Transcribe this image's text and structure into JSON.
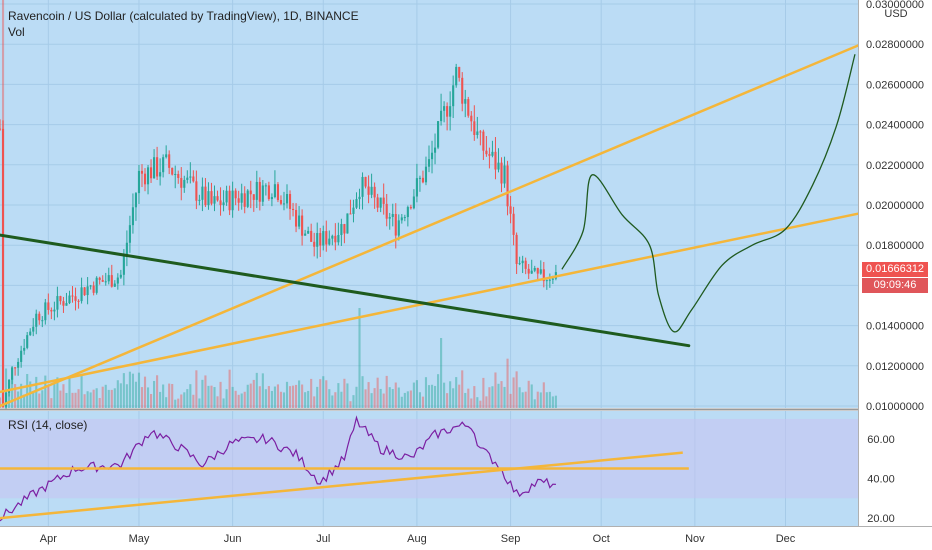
{
  "header": {
    "title": "Ravencoin / US Dollar (calculated by TradingView), 1D, BINANCE",
    "vol_label": "Vol",
    "rsi_label": "RSI (14, close)"
  },
  "price_axis": {
    "unit": "USD",
    "ticks": [
      "0.01000000",
      "0.01200000",
      "0.01400000",
      "0.01600000",
      "0.01800000",
      "0.02000000",
      "0.02200000",
      "0.02400000",
      "0.02600000",
      "0.02800000",
      "0.03000000"
    ]
  },
  "rsi_axis": {
    "ticks": [
      "20.00",
      "40.00",
      "60.00"
    ]
  },
  "time_axis": {
    "labels": [
      "Apr",
      "May",
      "Jun",
      "Jul",
      "Aug",
      "Sep",
      "Oct",
      "Nov",
      "Dec"
    ]
  },
  "last_price": {
    "value": "0.01666312",
    "countdown": "09:09:46"
  },
  "colors": {
    "background": "#bbdcf5",
    "up": "#26a69a",
    "down": "#ef5350",
    "trendline_orange": "#f4b63a",
    "trendline_green": "#1e5b1e",
    "projection": "#1f5a1f",
    "rsi_line": "#7b1fa2",
    "rsi_band": "#c9c2f0",
    "price_badge": "#ef5350",
    "countdown_badge": "#e0565a"
  },
  "chart_data": [
    {
      "type": "candlestick",
      "title": "Ravencoin / US Dollar (calculated by TradingView), 1D, BINANCE",
      "x_range": [
        "2020-03-16",
        "2020-12-25"
      ],
      "ylim": [
        0.0099,
        0.0302
      ],
      "y_unit": "USD",
      "grid": true,
      "anchors": [
        {
          "date": "2020-03-16",
          "close": 0.0238
        },
        {
          "date": "2020-03-17",
          "close": 0.01
        },
        {
          "date": "2020-03-20",
          "close": 0.0118
        },
        {
          "date": "2020-03-28",
          "close": 0.0145
        },
        {
          "date": "2020-04-15",
          "close": 0.016
        },
        {
          "date": "2020-04-25",
          "close": 0.0165
        },
        {
          "date": "2020-05-01",
          "close": 0.0215
        },
        {
          "date": "2020-05-10",
          "close": 0.022
        },
        {
          "date": "2020-05-25",
          "close": 0.02
        },
        {
          "date": "2020-06-15",
          "close": 0.021
        },
        {
          "date": "2020-06-28",
          "close": 0.018
        },
        {
          "date": "2020-07-08",
          "close": 0.019
        },
        {
          "date": "2020-07-13",
          "close": 0.021
        },
        {
          "date": "2020-07-25",
          "close": 0.019
        },
        {
          "date": "2020-08-05",
          "close": 0.022
        },
        {
          "date": "2020-08-14",
          "close": 0.0265
        },
        {
          "date": "2020-08-22",
          "close": 0.023
        },
        {
          "date": "2020-08-30",
          "close": 0.0215
        },
        {
          "date": "2020-09-03",
          "close": 0.017
        },
        {
          "date": "2020-09-10",
          "close": 0.0163
        },
        {
          "date": "2020-09-16",
          "close": 0.01666
        }
      ],
      "volume": {
        "relative_peaks": [
          {
            "date": "2020-07-13",
            "level": "max"
          },
          {
            "date": "2020-08-09",
            "level": "high"
          }
        ]
      }
    },
    {
      "type": "line",
      "name": "RSI (14, close)",
      "ylim": [
        16,
        74
      ],
      "bands": [
        30,
        70
      ],
      "points": [
        {
          "date": "2020-03-16",
          "y": 20
        },
        {
          "date": "2020-03-28",
          "y": 33
        },
        {
          "date": "2020-04-10",
          "y": 45
        },
        {
          "date": "2020-04-25",
          "y": 47
        },
        {
          "date": "2020-05-05",
          "y": 64
        },
        {
          "date": "2020-05-15",
          "y": 55
        },
        {
          "date": "2020-05-22",
          "y": 47
        },
        {
          "date": "2020-06-01",
          "y": 58
        },
        {
          "date": "2020-06-12",
          "y": 60
        },
        {
          "date": "2020-06-22",
          "y": 52
        },
        {
          "date": "2020-06-30",
          "y": 38
        },
        {
          "date": "2020-07-08",
          "y": 50
        },
        {
          "date": "2020-07-12",
          "y": 69
        },
        {
          "date": "2020-07-20",
          "y": 55
        },
        {
          "date": "2020-07-30",
          "y": 50
        },
        {
          "date": "2020-08-07",
          "y": 62
        },
        {
          "date": "2020-08-14",
          "y": 66
        },
        {
          "date": "2020-08-19",
          "y": 67
        },
        {
          "date": "2020-08-22",
          "y": 55
        },
        {
          "date": "2020-08-28",
          "y": 47
        },
        {
          "date": "2020-09-03",
          "y": 32
        },
        {
          "date": "2020-09-10",
          "y": 38
        },
        {
          "date": "2020-09-16",
          "y": 37
        }
      ]
    }
  ],
  "drawings": {
    "price_trendlines": [
      {
        "name": "orange-trendline-upper",
        "color": "orange",
        "p1": {
          "date": "2020-03-16",
          "price": 0.01
        },
        "p2": {
          "date": "2020-12-26",
          "price": 0.028
        }
      },
      {
        "name": "orange-trendline-lower",
        "color": "orange",
        "p1": {
          "date": "2020-03-16",
          "price": 0.0107
        },
        "p2": {
          "date": "2020-12-26",
          "price": 0.0196
        }
      },
      {
        "name": "green-trendline",
        "color": "green",
        "p1": {
          "date": "2020-03-16",
          "price": 0.0185
        },
        "p2": {
          "date": "2020-10-30",
          "price": 0.013
        }
      }
    ],
    "rsi_lines": [
      {
        "name": "rsi-horizontal-line",
        "p1": {
          "date": "2020-03-16",
          "y": 45
        },
        "p2": {
          "date": "2020-10-30",
          "y": 45
        }
      },
      {
        "name": "rsi-rising-line",
        "p1": {
          "date": "2020-03-16",
          "y": 20
        },
        "p2": {
          "date": "2020-10-28",
          "y": 53
        }
      }
    ],
    "projection_path": [
      {
        "date": "2020-09-18",
        "price": 0.0168
      },
      {
        "date": "2020-09-25",
        "price": 0.0187
      },
      {
        "date": "2020-09-28",
        "price": 0.0215
      },
      {
        "date": "2020-10-08",
        "price": 0.0195
      },
      {
        "date": "2020-10-17",
        "price": 0.018
      },
      {
        "date": "2020-10-20",
        "price": 0.0155
      },
      {
        "date": "2020-10-25",
        "price": 0.0137
      },
      {
        "date": "2020-10-31",
        "price": 0.0148
      },
      {
        "date": "2020-11-10",
        "price": 0.017
      },
      {
        "date": "2020-11-20",
        "price": 0.018
      },
      {
        "date": "2020-12-01",
        "price": 0.0188
      },
      {
        "date": "2020-12-10",
        "price": 0.021
      },
      {
        "date": "2020-12-18",
        "price": 0.024
      },
      {
        "date": "2020-12-24",
        "price": 0.0275
      }
    ]
  }
}
